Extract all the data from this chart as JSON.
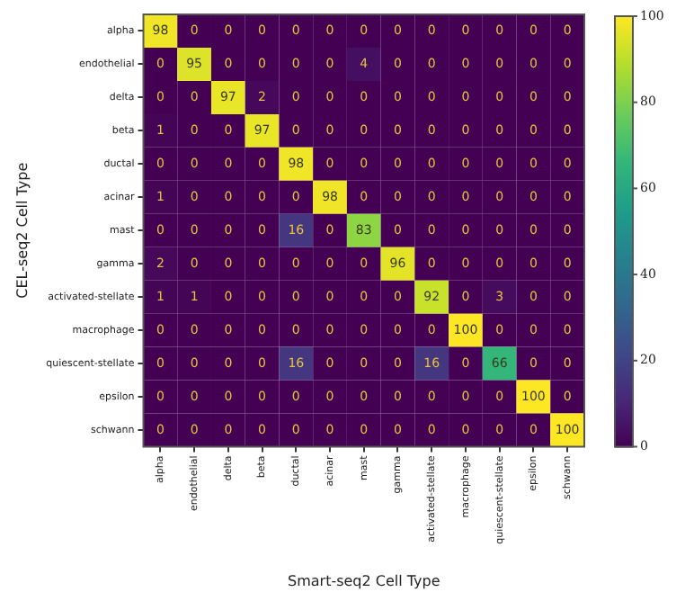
{
  "chart_data": {
    "type": "heatmap",
    "xlabel": "Smart-seq2 Cell Type",
    "ylabel": "CEL-seq2 Cell Type",
    "categories": [
      "alpha",
      "endothelial",
      "delta",
      "beta",
      "ductal",
      "acinar",
      "mast",
      "gamma",
      "activated-stellate",
      "macrophage",
      "quiescent-stellate",
      "epsilon",
      "schwann"
    ],
    "y_categories": [
      "alpha",
      "endothelial",
      "delta",
      "beta",
      "ductal",
      "acinar",
      "mast",
      "gamma",
      "activated-stellate",
      "macrophage",
      "quiescent-stellate",
      "epsilon",
      "schwann"
    ],
    "cells": [
      [
        98,
        0,
        0,
        0,
        0,
        0,
        0,
        0,
        0,
        0,
        0,
        0,
        0
      ],
      [
        0,
        95,
        0,
        0,
        0,
        0,
        4,
        0,
        0,
        0,
        0,
        0,
        0
      ],
      [
        0,
        0,
        97,
        2,
        0,
        0,
        0,
        0,
        0,
        0,
        0,
        0,
        0
      ],
      [
        1,
        0,
        0,
        97,
        0,
        0,
        0,
        0,
        0,
        0,
        0,
        0,
        0
      ],
      [
        0,
        0,
        0,
        0,
        98,
        0,
        0,
        0,
        0,
        0,
        0,
        0,
        0
      ],
      [
        1,
        0,
        0,
        0,
        0,
        98,
        0,
        0,
        0,
        0,
        0,
        0,
        0
      ],
      [
        0,
        0,
        0,
        0,
        16,
        0,
        83,
        0,
        0,
        0,
        0,
        0,
        0
      ],
      [
        2,
        0,
        0,
        0,
        0,
        0,
        0,
        96,
        0,
        0,
        0,
        0,
        0
      ],
      [
        1,
        1,
        0,
        0,
        0,
        0,
        0,
        0,
        92,
        0,
        3,
        0,
        0
      ],
      [
        0,
        0,
        0,
        0,
        0,
        0,
        0,
        0,
        0,
        100,
        0,
        0,
        0
      ],
      [
        0,
        0,
        0,
        0,
        16,
        0,
        0,
        0,
        16,
        0,
        66,
        0,
        0
      ],
      [
        0,
        0,
        0,
        0,
        0,
        0,
        0,
        0,
        0,
        0,
        0,
        100,
        0
      ],
      [
        0,
        0,
        0,
        0,
        0,
        0,
        0,
        0,
        0,
        0,
        0,
        0,
        100
      ]
    ],
    "data_labels": true,
    "clim": [
      0,
      100
    ],
    "cticks": [
      0,
      20,
      40,
      60,
      80,
      100
    ]
  }
}
